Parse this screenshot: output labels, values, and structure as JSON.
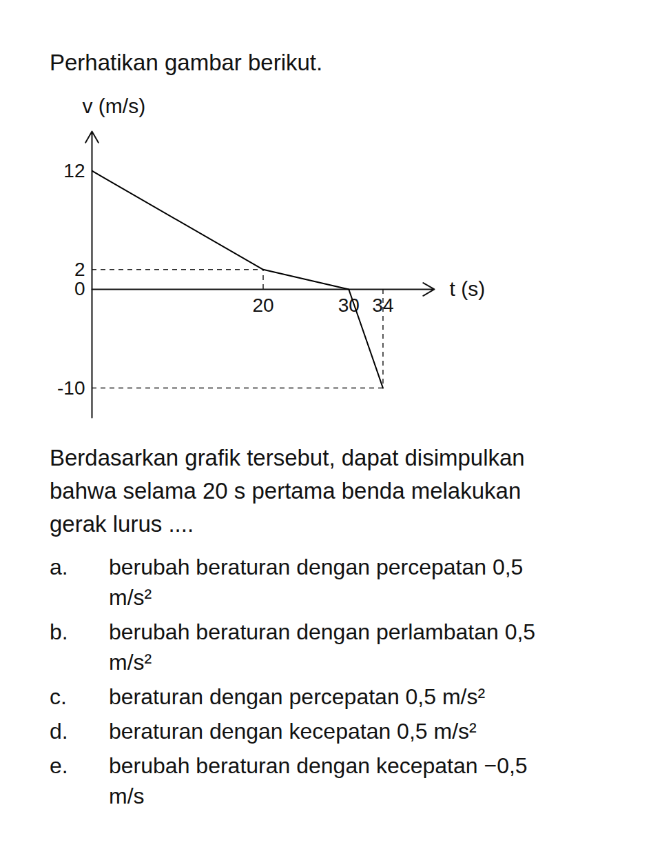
{
  "intro": "Perhatikan gambar berikut.",
  "chart_data": {
    "type": "line",
    "x": [
      0,
      20,
      30,
      34
    ],
    "values": [
      12,
      2,
      0,
      -10
    ],
    "color": "#000000",
    "xlabel": "t (s)",
    "ylabel": "v (m/s)",
    "xlim": [
      0,
      40
    ],
    "ylim": [
      -13,
      16
    ],
    "xticks": [
      20,
      30,
      34
    ],
    "yticks": [
      -10,
      0,
      2,
      12
    ],
    "grid": false
  },
  "question": "Berdasarkan grafik tersebut, dapat disimpulkan bahwa selama 20 s pertama benda melakukan gerak lurus ....",
  "options": [
    {
      "label": "a.",
      "text": "berubah beraturan dengan percepatan 0,5 m/s²"
    },
    {
      "label": "b.",
      "text": "berubah beraturan dengan perlambatan 0,5 m/s²"
    },
    {
      "label": "c.",
      "text": "beraturan dengan percepatan 0,5 m/s²"
    },
    {
      "label": "d.",
      "text": "beraturan dengan kecepatan 0,5 m/s²"
    },
    {
      "label": "e.",
      "text": "berubah beraturan dengan kecepatan −0,5 m/s"
    }
  ]
}
